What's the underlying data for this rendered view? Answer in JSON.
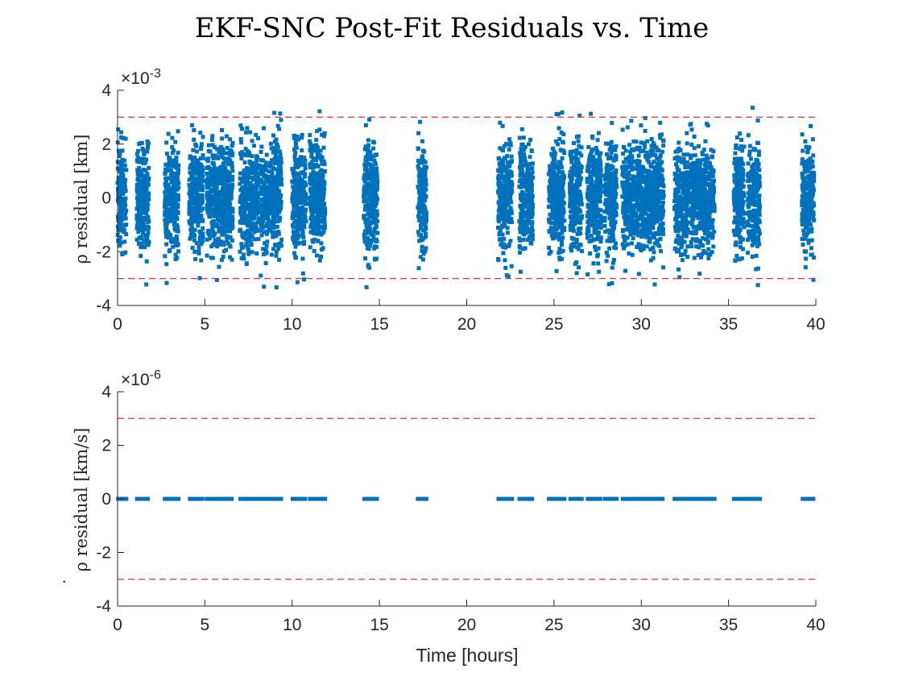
{
  "chart_data": {
    "title": "EKF-SNC Post-Fit Residuals vs. Time",
    "xlabel": "Time [hours]",
    "x_ticks": [
      "0",
      "5",
      "10",
      "15",
      "20",
      "25",
      "30",
      "35",
      "40"
    ],
    "xlim": [
      0,
      40
    ],
    "marker": "square",
    "series_color": "#0072bd",
    "bound_color": "#e8333a",
    "observation_passes_hours": [
      [
        0.0,
        0.5
      ],
      [
        1.1,
        1.8
      ],
      [
        2.7,
        3.5
      ],
      [
        4.1,
        4.9
      ],
      [
        5.1,
        6.6
      ],
      [
        7.0,
        8.1
      ],
      [
        8.2,
        9.4
      ],
      [
        10.0,
        10.8
      ],
      [
        11.0,
        11.9
      ],
      [
        14.1,
        14.9
      ],
      [
        17.2,
        17.7
      ],
      [
        21.8,
        22.6
      ],
      [
        23.0,
        23.8
      ],
      [
        24.7,
        25.6
      ],
      [
        25.9,
        26.6
      ],
      [
        26.9,
        27.7
      ],
      [
        27.9,
        28.6
      ],
      [
        28.9,
        29.6
      ],
      [
        29.7,
        31.3
      ],
      [
        31.9,
        32.7
      ],
      [
        32.8,
        34.2
      ],
      [
        35.3,
        35.9
      ],
      [
        36.1,
        36.8
      ],
      [
        39.2,
        39.9
      ]
    ],
    "panels": [
      {
        "name": "range",
        "type": "scatter",
        "ylabel": "ρ residual [km]",
        "ylabel_dot": false,
        "exponent": {
          "base": "×10",
          "power": "-3"
        },
        "ylim": [
          -4,
          4
        ],
        "y_ticks": [
          "-4",
          "-2",
          "0",
          "2",
          "4"
        ],
        "y_tick_values": [
          -4,
          -2,
          0,
          2,
          4
        ],
        "bounds": [
          3,
          -3
        ],
        "residual_sigma": 1.0,
        "residual_max": 3.4
      },
      {
        "name": "range-rate",
        "type": "scatter",
        "ylabel": "ρ residual [km/s]",
        "ylabel_dot": true,
        "exponent": {
          "base": "×10",
          "power": "-6"
        },
        "ylim": [
          -4,
          4
        ],
        "y_ticks": [
          "-4",
          "-2",
          "0",
          "2",
          "4"
        ],
        "y_tick_values": [
          -4,
          -2,
          0,
          2,
          4
        ],
        "bounds": [
          3,
          -3
        ],
        "residual_sigma": 0.0,
        "residual_max": 0.0
      }
    ]
  }
}
